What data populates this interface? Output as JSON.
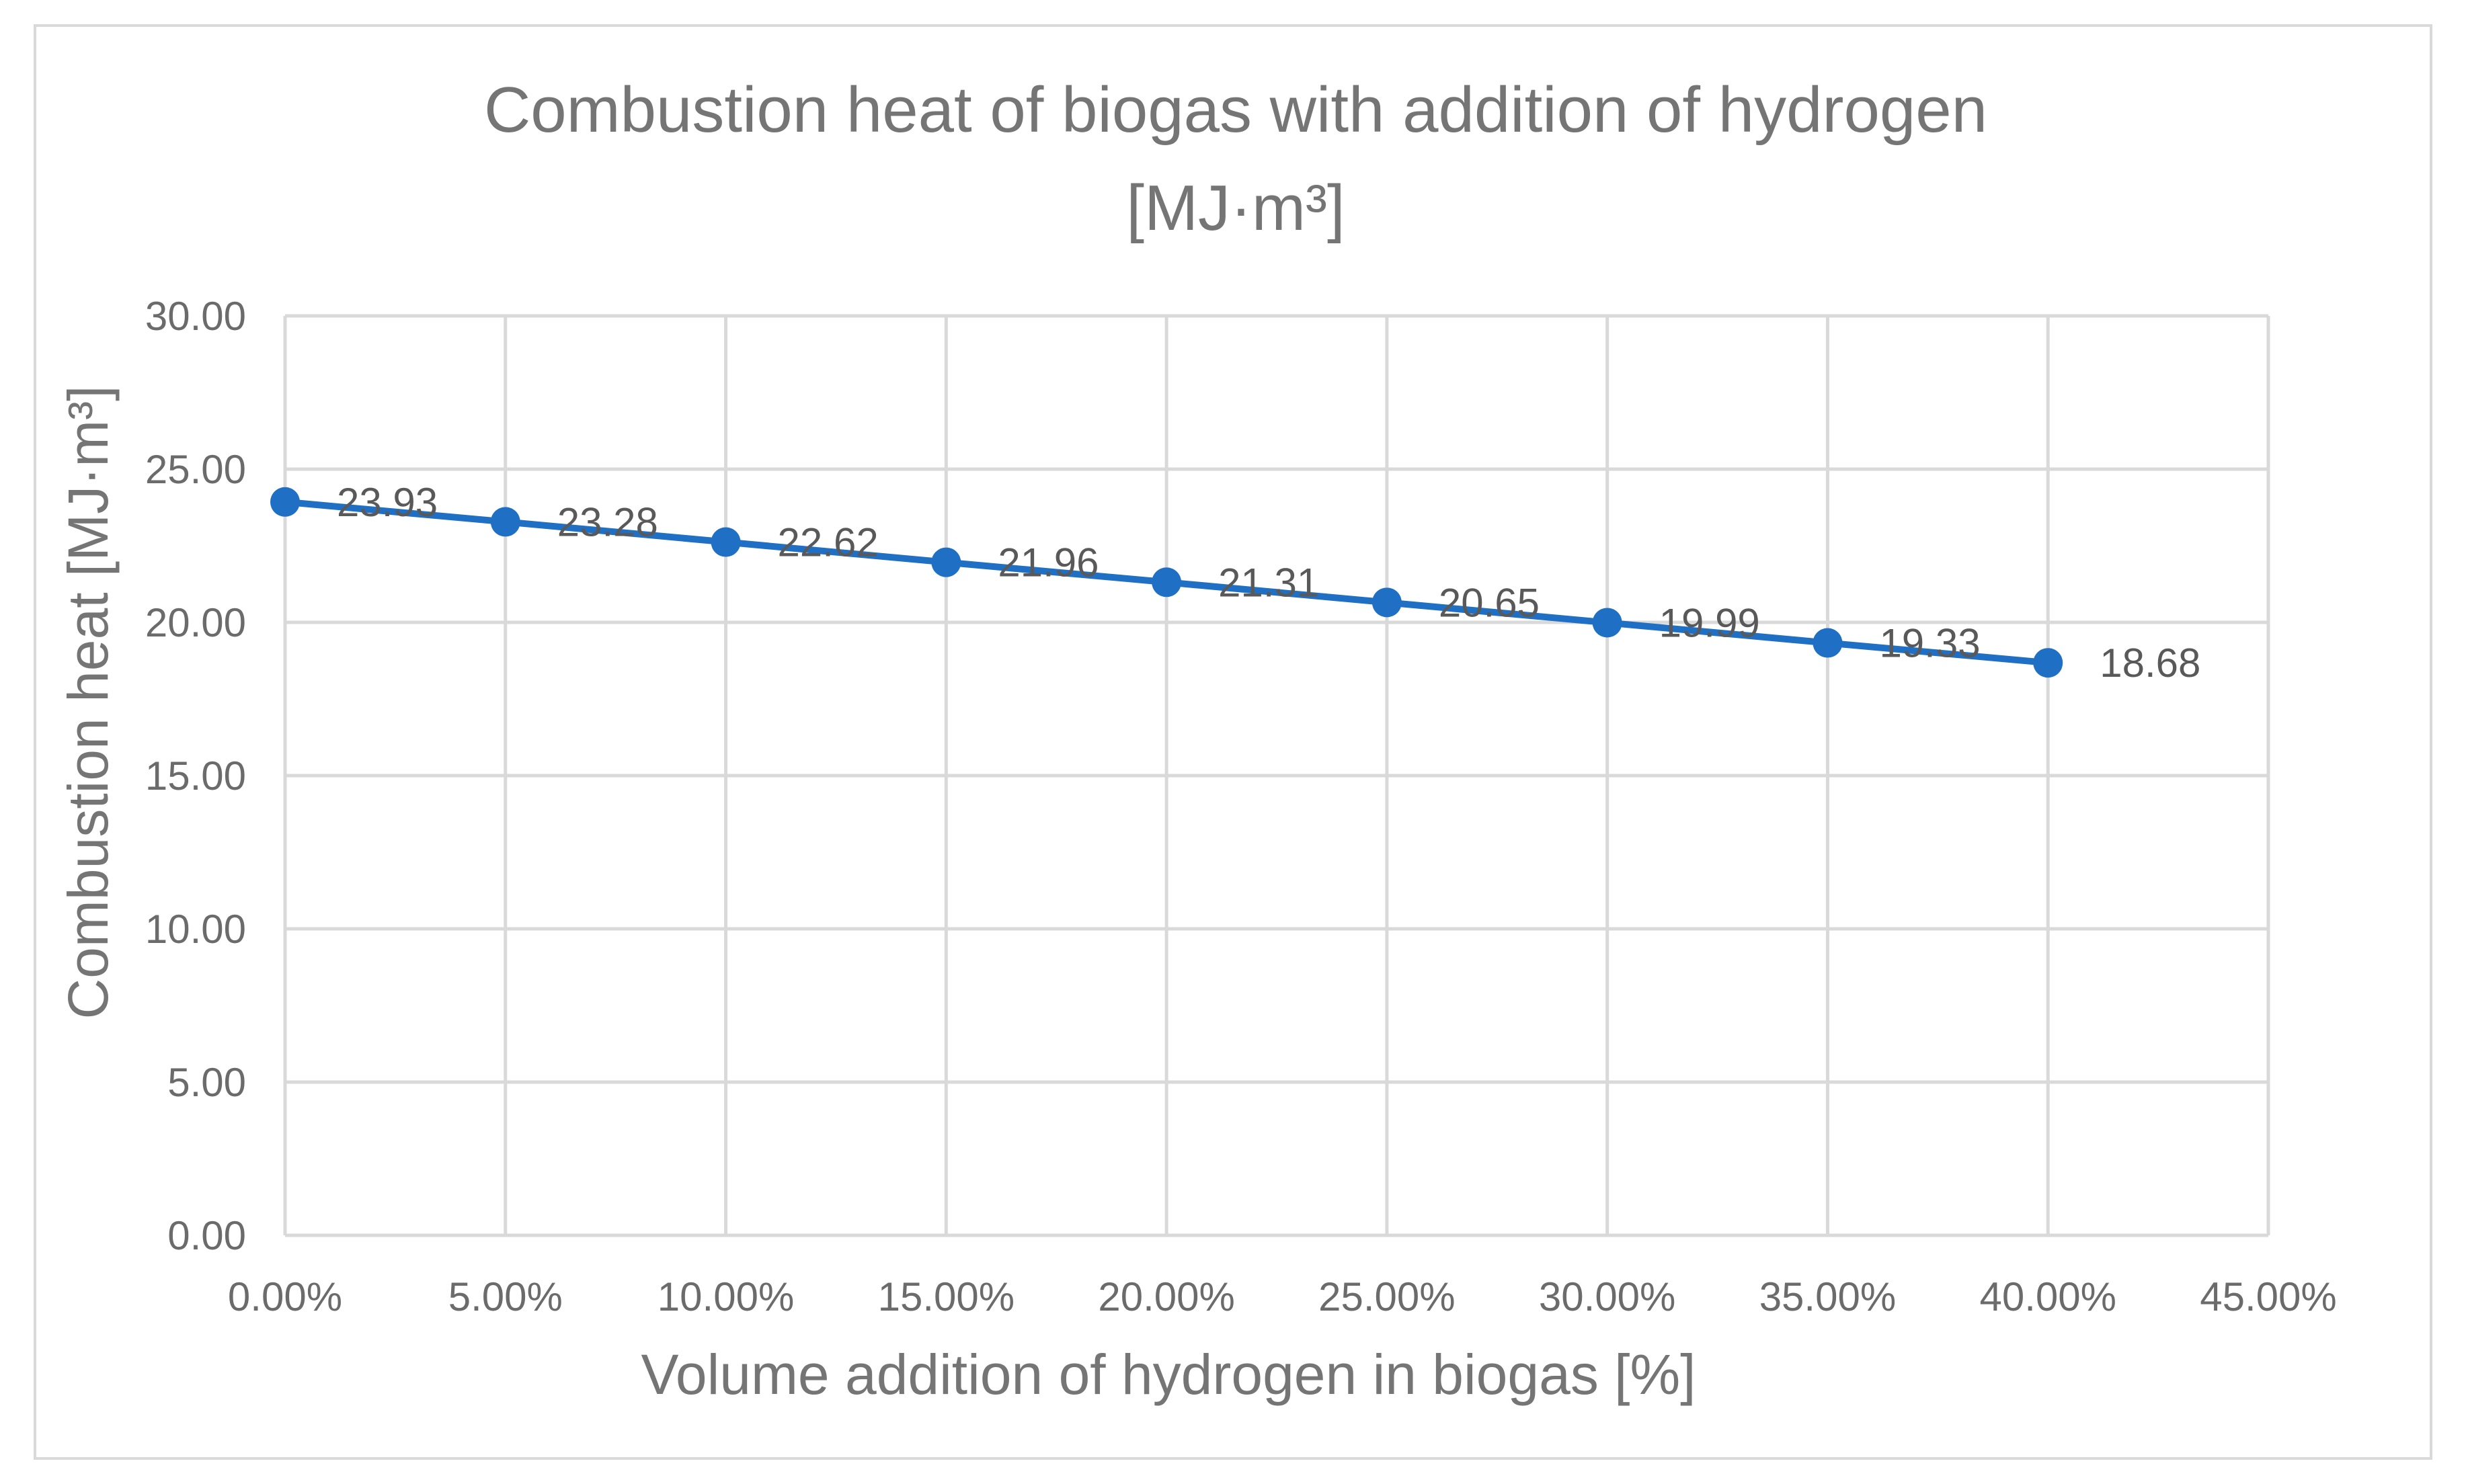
{
  "chart_data": {
    "type": "line",
    "title": "Combustion heat of biogas with addition of hydrogen",
    "title_line2": "[MJ·m³]",
    "xlabel": "Volume addition of hydrogen in biogas [%]",
    "ylabel": "Combustion heat [MJ·m³]",
    "x": [
      0,
      5,
      10,
      15,
      20,
      25,
      30,
      35,
      40
    ],
    "xlim": [
      0,
      45
    ],
    "ylim": [
      0,
      30
    ],
    "x_tick_values": [
      0,
      5,
      10,
      15,
      20,
      25,
      30,
      35,
      40,
      45
    ],
    "x_tick_labels": [
      "0.00%",
      "5.00%",
      "10.00%",
      "15.00%",
      "20.00%",
      "25.00%",
      "30.00%",
      "35.00%",
      "40.00%",
      "45.00%"
    ],
    "y_tick_values": [
      0,
      5,
      10,
      15,
      20,
      25,
      30
    ],
    "y_tick_labels": [
      "0.00",
      "5.00",
      "10.00",
      "15.00",
      "20.00",
      "25.00",
      "30.00"
    ],
    "grid": true,
    "series": [
      {
        "name": "Combustion heat",
        "color": "#1f6fc5",
        "values": [
          23.93,
          23.28,
          22.62,
          21.96,
          21.31,
          20.65,
          19.99,
          19.33,
          18.68
        ],
        "data_labels": [
          "23.93",
          "23.28",
          "22.62",
          "21.96",
          "21.31",
          "20.65",
          "19.99",
          "19.33",
          "18.68"
        ]
      }
    ]
  }
}
